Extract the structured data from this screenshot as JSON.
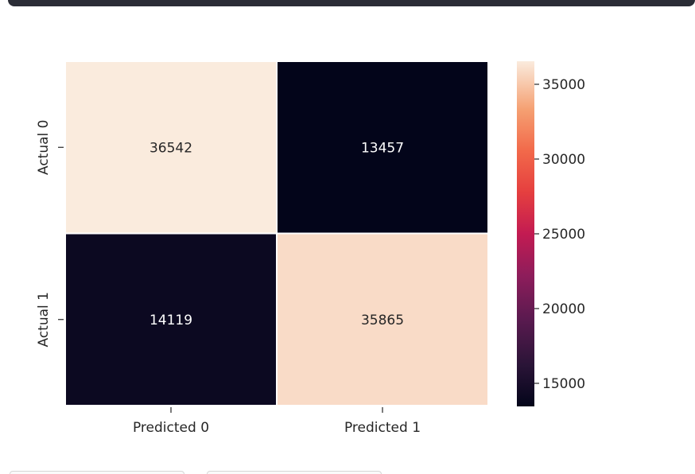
{
  "chart_data": {
    "type": "heatmap",
    "title": "",
    "xlabel": "",
    "ylabel": "",
    "x_categories": [
      "Predicted 0",
      "Predicted 1"
    ],
    "y_categories": [
      "Actual 0",
      "Actual 1"
    ],
    "values": [
      [
        36542,
        13457
      ],
      [
        14119,
        35865
      ]
    ],
    "colormap": "rocket",
    "colorbar": {
      "min": 13457,
      "max": 36542,
      "ticks": [
        15000,
        20000,
        25000,
        30000,
        35000
      ],
      "tick_labels": [
        "15000",
        "20000",
        "25000",
        "30000",
        "35000"
      ]
    },
    "grid": false,
    "annotations": true
  }
}
